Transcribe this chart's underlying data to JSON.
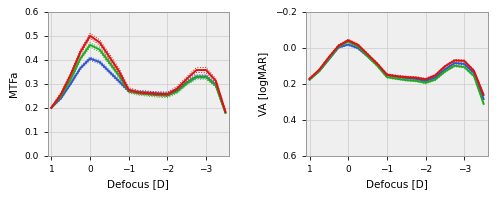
{
  "x": [
    1.0,
    0.75,
    0.5,
    0.25,
    0.0,
    -0.25,
    -0.5,
    -0.75,
    -1.0,
    -1.25,
    -1.5,
    -1.75,
    -2.0,
    -2.25,
    -2.5,
    -2.75,
    -3.0,
    -3.25,
    -3.5
  ],
  "mtfa_blue_avg": [
    0.2,
    0.24,
    0.3,
    0.365,
    0.405,
    0.39,
    0.35,
    0.31,
    0.27,
    0.265,
    0.263,
    0.26,
    0.258,
    0.272,
    0.305,
    0.33,
    0.33,
    0.295,
    0.18
  ],
  "mtfa_blue_s1": [
    0.197,
    0.235,
    0.295,
    0.358,
    0.398,
    0.383,
    0.343,
    0.303,
    0.263,
    0.259,
    0.257,
    0.254,
    0.251,
    0.265,
    0.298,
    0.323,
    0.323,
    0.288,
    0.175
  ],
  "mtfa_blue_s2": [
    0.203,
    0.245,
    0.305,
    0.372,
    0.412,
    0.397,
    0.357,
    0.317,
    0.277,
    0.271,
    0.269,
    0.266,
    0.265,
    0.279,
    0.312,
    0.337,
    0.337,
    0.302,
    0.185
  ],
  "mtfa_green_avg": [
    0.2,
    0.25,
    0.318,
    0.405,
    0.462,
    0.442,
    0.388,
    0.333,
    0.27,
    0.26,
    0.256,
    0.252,
    0.25,
    0.267,
    0.302,
    0.327,
    0.327,
    0.293,
    0.179
  ],
  "mtfa_green_s1": [
    0.197,
    0.243,
    0.31,
    0.396,
    0.453,
    0.433,
    0.379,
    0.324,
    0.262,
    0.252,
    0.248,
    0.244,
    0.242,
    0.259,
    0.294,
    0.319,
    0.319,
    0.286,
    0.174
  ],
  "mtfa_green_s2": [
    0.203,
    0.257,
    0.326,
    0.414,
    0.471,
    0.451,
    0.397,
    0.342,
    0.278,
    0.268,
    0.264,
    0.26,
    0.258,
    0.275,
    0.31,
    0.335,
    0.335,
    0.3,
    0.184
  ],
  "mtfa_red_avg": [
    0.2,
    0.257,
    0.338,
    0.432,
    0.5,
    0.472,
    0.412,
    0.352,
    0.274,
    0.264,
    0.26,
    0.257,
    0.256,
    0.28,
    0.32,
    0.357,
    0.357,
    0.312,
    0.183
  ],
  "mtfa_red_s1": [
    0.196,
    0.25,
    0.33,
    0.422,
    0.49,
    0.461,
    0.4,
    0.34,
    0.265,
    0.256,
    0.252,
    0.249,
    0.248,
    0.271,
    0.311,
    0.347,
    0.346,
    0.303,
    0.177
  ],
  "mtfa_red_s2": [
    0.204,
    0.264,
    0.346,
    0.442,
    0.51,
    0.483,
    0.424,
    0.364,
    0.283,
    0.272,
    0.268,
    0.265,
    0.264,
    0.289,
    0.329,
    0.367,
    0.368,
    0.321,
    0.189
  ],
  "va_blue_avg": [
    0.175,
    0.13,
    0.065,
    -0.002,
    -0.018,
    0.002,
    0.047,
    0.095,
    0.15,
    0.16,
    0.168,
    0.173,
    0.185,
    0.165,
    0.12,
    0.085,
    0.09,
    0.14,
    0.285
  ],
  "va_blue_s1": [
    0.178,
    0.133,
    0.068,
    0.002,
    -0.013,
    0.007,
    0.052,
    0.1,
    0.155,
    0.165,
    0.173,
    0.178,
    0.19,
    0.17,
    0.125,
    0.09,
    0.095,
    0.145,
    0.29
  ],
  "va_blue_s2": [
    0.172,
    0.127,
    0.062,
    -0.006,
    -0.023,
    -0.003,
    0.042,
    0.09,
    0.145,
    0.155,
    0.163,
    0.168,
    0.18,
    0.16,
    0.115,
    0.08,
    0.085,
    0.135,
    0.28
  ],
  "va_green_avg": [
    0.178,
    0.13,
    0.062,
    -0.008,
    -0.035,
    -0.008,
    0.047,
    0.1,
    0.163,
    0.172,
    0.18,
    0.184,
    0.195,
    0.177,
    0.132,
    0.1,
    0.107,
    0.157,
    0.312
  ],
  "va_green_s1": [
    0.181,
    0.133,
    0.066,
    -0.003,
    -0.03,
    -0.003,
    0.052,
    0.105,
    0.168,
    0.177,
    0.185,
    0.189,
    0.2,
    0.182,
    0.137,
    0.105,
    0.112,
    0.162,
    0.317
  ],
  "va_green_s2": [
    0.175,
    0.127,
    0.058,
    -0.013,
    -0.04,
    -0.013,
    0.042,
    0.095,
    0.158,
    0.167,
    0.175,
    0.179,
    0.19,
    0.172,
    0.127,
    0.095,
    0.102,
    0.152,
    0.307
  ],
  "va_red_avg": [
    0.172,
    0.122,
    0.052,
    -0.012,
    -0.042,
    -0.017,
    0.036,
    0.088,
    0.15,
    0.158,
    0.163,
    0.166,
    0.175,
    0.153,
    0.103,
    0.07,
    0.073,
    0.128,
    0.262
  ],
  "va_red_s1": [
    0.175,
    0.126,
    0.056,
    -0.007,
    -0.037,
    -0.012,
    0.041,
    0.093,
    0.155,
    0.163,
    0.168,
    0.171,
    0.18,
    0.158,
    0.108,
    0.075,
    0.078,
    0.133,
    0.267
  ],
  "va_red_s2": [
    0.169,
    0.118,
    0.048,
    -0.017,
    -0.047,
    -0.022,
    0.031,
    0.083,
    0.145,
    0.153,
    0.158,
    0.161,
    0.17,
    0.148,
    0.098,
    0.065,
    0.068,
    0.123,
    0.257
  ],
  "blue": "#3355cc",
  "green": "#22aa22",
  "red": "#dd1111",
  "mtfa_ylim": [
    0,
    0.6
  ],
  "mtfa_yticks": [
    0,
    0.1,
    0.2,
    0.3,
    0.4,
    0.5,
    0.6
  ],
  "va_ylim": [
    0.6,
    -0.2
  ],
  "va_yticks": [
    -0.2,
    0.0,
    0.2,
    0.4,
    0.6
  ],
  "xticks": [
    1,
    0,
    -1,
    -2,
    -3
  ],
  "xlim": [
    1.1,
    -3.6
  ],
  "xlabel": "Defocus [D]",
  "mtfa_ylabel": "MTFa",
  "va_ylabel": "VA [logMAR]",
  "lw_avg": 1.4,
  "lw_sample": 0.7,
  "grid_color": "#d0d0d0",
  "bg_color": "#efefef"
}
